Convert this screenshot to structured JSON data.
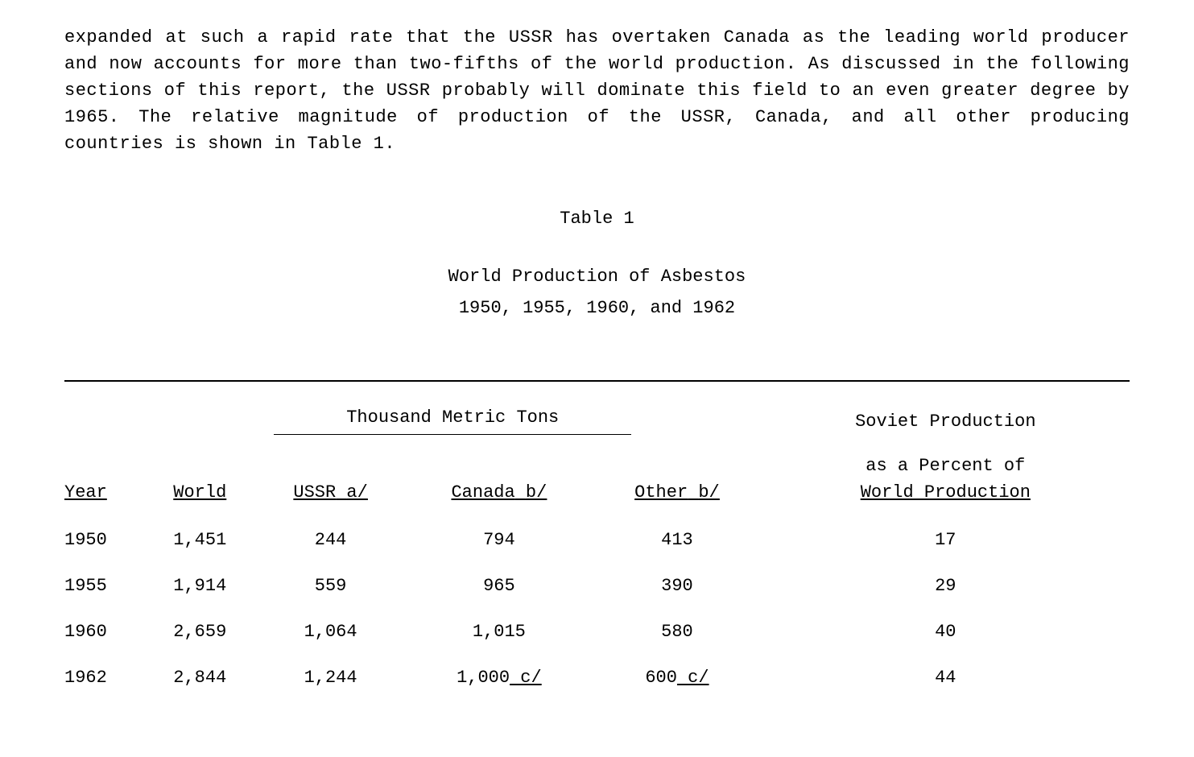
{
  "paragraph": "expanded at such a rapid rate that the USSR has overtaken Canada as the leading world producer and now accounts for more than two-fifths of the world production.  As discussed in the following sections of this report, the USSR probably will dominate this field to an even greater degree by 1965.  The relative magnitude of production of the USSR, Canada, and all other producing countries is shown in Table 1.",
  "table": {
    "label": "Table 1",
    "title": "World Production of Asbestos",
    "years_line": "1950, 1955, 1960, and 1962",
    "group_headers": {
      "metric_tons": "Thousand Metric Tons",
      "soviet_pct_line1": "Soviet Production",
      "soviet_pct_line2": "as a Percent of",
      "soviet_pct_line3": "World Production"
    },
    "columns": {
      "year": "Year",
      "world": "World",
      "ussr": "USSR",
      "ussr_note": "a/",
      "canada": "Canada",
      "canada_note": "b/",
      "other": "Other",
      "other_note": "b/"
    },
    "rows": [
      {
        "year": "1950",
        "world": "1,451",
        "ussr": "244",
        "canada": "794",
        "canada_note": "",
        "other": "413",
        "other_note": "",
        "pct": "17"
      },
      {
        "year": "1955",
        "world": "1,914",
        "ussr": "559",
        "canada": "965",
        "canada_note": "",
        "other": "390",
        "other_note": "",
        "pct": "29"
      },
      {
        "year": "1960",
        "world": "2,659",
        "ussr": "1,064",
        "canada": "1,015",
        "canada_note": "",
        "other": "580",
        "other_note": "",
        "pct": "40"
      },
      {
        "year": "1962",
        "world": "2,844",
        "ussr": "1,244",
        "canada": "1,000",
        "canada_note": " c/",
        "other": "600",
        "other_note": " c/",
        "pct": "44"
      }
    ]
  }
}
